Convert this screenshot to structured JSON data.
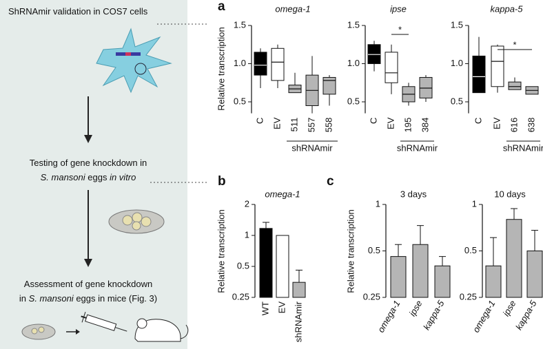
{
  "workflow": {
    "steps": [
      [
        [
          "ShRNAmir validation in COS7 cells"
        ]
      ],
      [
        [
          "Testing of gene knockdown in"
        ],
        [
          "S. mansoni",
          " eggs ",
          "in vitro"
        ]
      ],
      [
        [
          "Assessment of gene knockdown"
        ],
        [
          "in ",
          "S. mansoni",
          " eggs in mice (Fig. 3)"
        ]
      ]
    ]
  },
  "panel_labels": [
    "a",
    "b",
    "c"
  ],
  "chart_data": [
    {
      "type": "box",
      "title": "omega-1",
      "ylabel": "Relative transcription",
      "categories": [
        "C",
        "EV",
        "511",
        "557",
        "558"
      ],
      "colors": [
        "#000000",
        "#ffffff",
        "#b5b5b5",
        "#b5b5b5",
        "#b5b5b5"
      ],
      "min": [
        0.68,
        0.68,
        0.62,
        0.35,
        0.45
      ],
      "q1": [
        0.85,
        0.78,
        0.62,
        0.45,
        0.6
      ],
      "median": [
        0.98,
        1.02,
        0.67,
        0.65,
        0.78
      ],
      "q3": [
        1.15,
        1.2,
        0.72,
        0.85,
        0.82
      ],
      "max": [
        1.2,
        1.25,
        0.88,
        1.1,
        0.85
      ],
      "ylim": [
        0.35,
        1.5
      ],
      "yticks": [
        0.5,
        {
          "value": 1,
          "label": "1.0"
        },
        1.5
      ],
      "group": {
        "label": "shRNAmir",
        "categories": [
          "511",
          "558"
        ]
      }
    },
    {
      "type": "box",
      "title": "ipse",
      "categories": [
        "C",
        "EV",
        "195",
        "384"
      ],
      "colors": [
        "#000000",
        "#ffffff",
        "#b5b5b5",
        "#b5b5b5"
      ],
      "min": [
        0.9,
        0.6,
        0.45,
        0.5
      ],
      "q1": [
        1.0,
        0.75,
        0.5,
        0.55
      ],
      "median": [
        1.12,
        0.88,
        0.6,
        0.68
      ],
      "q3": [
        1.25,
        1.15,
        0.7,
        0.82
      ],
      "max": [
        1.3,
        1.25,
        0.75,
        0.85
      ],
      "ylim": [
        0.35,
        1.5
      ],
      "yticks": [
        0.5,
        {
          "value": 1,
          "label": "1.0"
        },
        1.5
      ],
      "group": {
        "label": "shRNAmir",
        "categories": [
          "195",
          "384"
        ]
      },
      "significance": {
        "label": "*",
        "between": [
          "EV",
          "195"
        ]
      }
    },
    {
      "type": "box",
      "title": "kappa-5",
      "categories": [
        "C",
        "EV",
        "616",
        "638"
      ],
      "colors": [
        "#000000",
        "#ffffff",
        "#b5b5b5",
        "#b5b5b5"
      ],
      "min": [
        0.62,
        0.62,
        0.66,
        0.6
      ],
      "q1": [
        0.62,
        0.7,
        0.66,
        0.6
      ],
      "median": [
        0.83,
        1.03,
        0.7,
        0.65
      ],
      "q3": [
        1.1,
        1.23,
        0.76,
        0.7
      ],
      "max": [
        1.35,
        1.25,
        0.82,
        0.7
      ],
      "ylim": [
        0.35,
        1.5
      ],
      "yticks": [
        0.5,
        {
          "value": 1,
          "label": "1.0"
        },
        1.5
      ],
      "group": {
        "label": "shRNAmir",
        "categories": [
          "616",
          "638"
        ]
      },
      "significance": {
        "label": "*",
        "between": [
          "EV",
          "638"
        ]
      }
    },
    {
      "type": "bar",
      "title": "omega-1",
      "ylabel": "Relative transcription",
      "categories": [
        "WT",
        "EV",
        "shRNAmir"
      ],
      "values": [
        1.17,
        1.0,
        0.35
      ],
      "errors": [
        0.17,
        null,
        0.11
      ],
      "colors": [
        "#000000",
        "#ffffff",
        "#b5b5b5"
      ],
      "log": true,
      "ylim": [
        0.25,
        2
      ],
      "yticks": [
        0.25,
        0.5,
        1,
        2
      ]
    },
    {
      "type": "bar",
      "title": "3 days",
      "ylabel": "Relative transcription",
      "categories": [
        "omega-1",
        "ipse",
        "kappa-5"
      ],
      "values": [
        0.46,
        0.55,
        0.4
      ],
      "errors": [
        0.09,
        0.18,
        0.06
      ],
      "color": "#b5b5b5",
      "log": true,
      "ylim": [
        0.25,
        1
      ],
      "yticks": [
        0.25,
        0.5,
        1
      ]
    },
    {
      "type": "bar",
      "title": "10 days",
      "categories": [
        "omega-1",
        "ipse",
        "kappa-5"
      ],
      "values": [
        0.4,
        0.8,
        0.5
      ],
      "errors": [
        0.21,
        0.14,
        0.18
      ],
      "color": "#b5b5b5",
      "log": true,
      "ylim": [
        0.25,
        1
      ],
      "yticks": [
        0.25,
        0.5,
        1
      ]
    }
  ]
}
